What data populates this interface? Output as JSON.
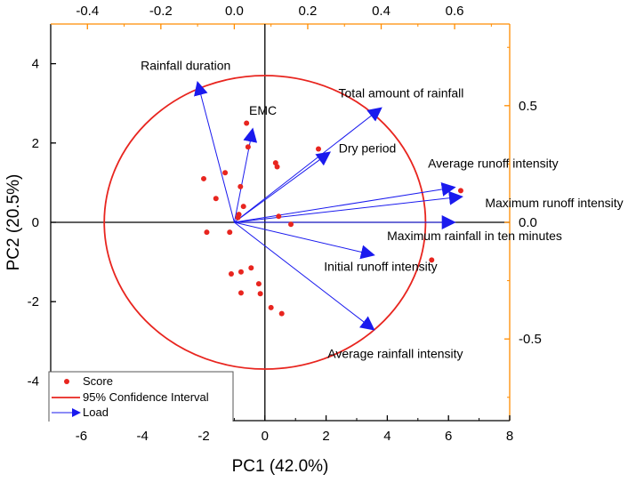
{
  "chart_data": {
    "type": "scatter",
    "title": "",
    "xlabel": "PC1 (42.0%)",
    "ylabel": "PC2 (20.5%)",
    "xlim": [
      -7,
      8
    ],
    "ylim": [
      -5,
      5
    ],
    "x_ticks": [
      "-6",
      "-4",
      "-2",
      "0",
      "2",
      "4",
      "6",
      "8"
    ],
    "x_tick_values": [
      -6,
      -4,
      -2,
      0,
      2,
      4,
      6,
      8
    ],
    "y_ticks": [
      "4",
      "2",
      "0",
      "-2",
      "-4"
    ],
    "y_tick_values": [
      4,
      2,
      0,
      -2,
      -4
    ],
    "top_axis": {
      "ticks": [
        "-0.4",
        "-0.2",
        "0.0",
        "0.2",
        "0.4",
        "0.6"
      ],
      "values": [
        -0.4,
        -0.2,
        0.0,
        0.2,
        0.4,
        0.6
      ],
      "range": [
        -0.5,
        0.75
      ],
      "color": "#ff8c00"
    },
    "right_axis": {
      "ticks": [
        "0.5",
        "0.0",
        "-0.5"
      ],
      "values": [
        0.5,
        0.0,
        -0.5
      ],
      "range": [
        -0.85,
        0.85
      ],
      "color": "#ff8c00"
    },
    "scores": {
      "name": "Score",
      "color": "#e8251f",
      "points": [
        [
          -0.6,
          2.5
        ],
        [
          -0.55,
          1.9
        ],
        [
          -1.3,
          1.25
        ],
        [
          -2.0,
          1.1
        ],
        [
          -0.8,
          0.9
        ],
        [
          -1.6,
          0.6
        ],
        [
          -0.7,
          0.4
        ],
        [
          -0.85,
          0.2
        ],
        [
          -0.88,
          0.12
        ],
        [
          -1.15,
          -0.25
        ],
        [
          -1.9,
          -0.25
        ],
        [
          -0.45,
          -1.15
        ],
        [
          -0.78,
          -1.25
        ],
        [
          -1.1,
          -1.3
        ],
        [
          -0.2,
          -1.55
        ],
        [
          -0.15,
          -1.8
        ],
        [
          -0.78,
          -1.78
        ],
        [
          0.2,
          -2.15
        ],
        [
          0.55,
          -2.3
        ],
        [
          0.35,
          1.5
        ],
        [
          0.4,
          1.4
        ],
        [
          1.75,
          1.85
        ],
        [
          0.45,
          0.15
        ],
        [
          0.85,
          -0.05
        ],
        [
          5.45,
          -0.95
        ],
        [
          6.4,
          0.8
        ]
      ]
    },
    "confidence_ellipse": {
      "name": "95% Confidence Interval",
      "color": "#e8251f",
      "center": [
        0.0,
        0.0
      ],
      "semi_axes": [
        5.25,
        3.7
      ]
    },
    "loadings": {
      "name": "Load",
      "color": "#1a1aee",
      "vectors": [
        {
          "label": "Rainfall duration",
          "x": -0.1,
          "y": 0.6
        },
        {
          "label": "EMC",
          "x": 0.05,
          "y": 0.4
        },
        {
          "label": "Total amount of rainfall",
          "x": 0.4,
          "y": 0.49
        },
        {
          "label": "Dry period",
          "x": 0.26,
          "y": 0.3
        },
        {
          "label": "Average runoff intensity",
          "x": 0.6,
          "y": 0.15
        },
        {
          "label": "Maximum runoff intensity",
          "x": 0.62,
          "y": 0.11
        },
        {
          "label": "Maximum rainfall in ten minutes",
          "x": 0.6,
          "y": 0.0
        },
        {
          "label": "Initial runoff intensity",
          "x": 0.38,
          "y": -0.14
        },
        {
          "label": "Average rainfall intensity",
          "x": 0.38,
          "y": -0.46
        }
      ]
    },
    "legend": {
      "position": "bottom-left",
      "entries": [
        "Score",
        "95% Confidence Interval",
        "Load"
      ]
    }
  }
}
